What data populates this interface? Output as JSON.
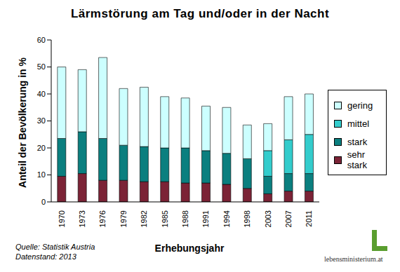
{
  "chart_data": {
    "type": "bar",
    "title": "Lärmstörung am Tag und/oder in der Nacht",
    "x_label": "Erhebungsjahr",
    "y_label": "Anteil der Bevölkerung in %",
    "annotations": [
      "Quelle: Statistik Austria",
      "Datenstand: 2013",
      "lebensministerium.at"
    ],
    "categories": [
      "1970",
      "1973",
      "1976",
      "1979",
      "1982",
      "1985",
      "1988",
      "1991",
      "1994",
      "1998",
      "2003",
      "2007",
      "2011"
    ],
    "series": [
      {
        "name": "sehr stark",
        "color": "#7b2336",
        "values": [
          9.5,
          10.5,
          8,
          8,
          7.5,
          7.5,
          7,
          7,
          6.5,
          5,
          3,
          4,
          4
        ]
      },
      {
        "name": "stark",
        "color": "#0b7f7f",
        "values": [
          14,
          15.5,
          15.5,
          13,
          13,
          12.5,
          13,
          12,
          11.5,
          11,
          6.5,
          6.5,
          6.5
        ]
      },
      {
        "name": "mittel",
        "color": "#33cccc",
        "values": [
          null,
          null,
          null,
          null,
          null,
          null,
          null,
          null,
          null,
          null,
          9.5,
          12.5,
          14.5
        ]
      },
      {
        "name": "gering",
        "color": "#ccffff",
        "values": [
          26.5,
          23,
          30,
          21,
          22,
          19,
          18.5,
          16.5,
          17,
          12.5,
          10,
          16,
          15
        ]
      }
    ],
    "stacked": true,
    "ylim": [
      0,
      60
    ],
    "yticks": [
      0,
      10,
      20,
      30,
      40,
      50,
      60
    ],
    "grid": false,
    "legend": "right"
  }
}
